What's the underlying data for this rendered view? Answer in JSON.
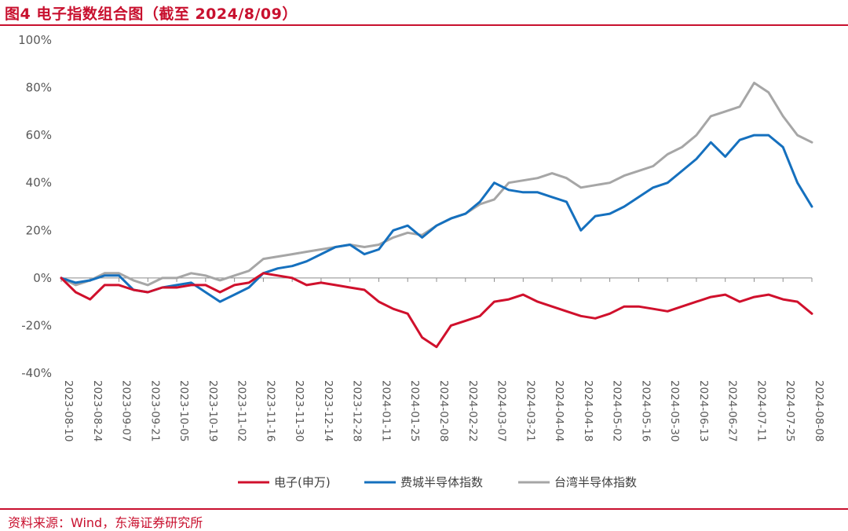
{
  "title": "图4  电子指数组合图（截至 2024/8/09）",
  "source": "资料来源：Wind，东海证券研究所",
  "colors": {
    "accent": "#c8102e"
  },
  "chart_data": {
    "type": "line",
    "title": "",
    "xlabel": "",
    "ylabel": "",
    "ylim": [
      -40,
      100
    ],
    "y_ticks": [
      -40,
      -20,
      0,
      20,
      40,
      60,
      80,
      100
    ],
    "y_tick_format": "percent",
    "grid": false,
    "legend_position": "bottom",
    "x_tick_labels": [
      "2023-08-10",
      "2023-08-24",
      "2023-09-07",
      "2023-09-21",
      "2023-10-05",
      "2023-10-19",
      "2023-11-02",
      "2023-11-16",
      "2023-11-30",
      "2023-12-14",
      "2023-12-28",
      "2024-01-11",
      "2024-01-25",
      "2024-02-08",
      "2024-02-22",
      "2024-03-07",
      "2024-03-21",
      "2024-04-04",
      "2024-04-18",
      "2024-05-02",
      "2024-05-16",
      "2024-05-30",
      "2024-06-13",
      "2024-06-27",
      "2024-07-11",
      "2024-07-25",
      "2024-08-08"
    ],
    "x": [
      "2023-08-10",
      "2023-08-17",
      "2023-08-24",
      "2023-08-31",
      "2023-09-07",
      "2023-09-14",
      "2023-09-21",
      "2023-09-28",
      "2023-10-05",
      "2023-10-12",
      "2023-10-19",
      "2023-10-26",
      "2023-11-02",
      "2023-11-09",
      "2023-11-16",
      "2023-11-23",
      "2023-11-30",
      "2023-12-07",
      "2023-12-14",
      "2023-12-21",
      "2023-12-28",
      "2024-01-04",
      "2024-01-11",
      "2024-01-18",
      "2024-01-25",
      "2024-02-01",
      "2024-02-08",
      "2024-02-15",
      "2024-02-22",
      "2024-02-29",
      "2024-03-07",
      "2024-03-14",
      "2024-03-21",
      "2024-03-28",
      "2024-04-04",
      "2024-04-11",
      "2024-04-18",
      "2024-04-25",
      "2024-05-02",
      "2024-05-09",
      "2024-05-16",
      "2024-05-23",
      "2024-05-30",
      "2024-06-06",
      "2024-06-13",
      "2024-06-20",
      "2024-06-27",
      "2024-07-04",
      "2024-07-11",
      "2024-07-18",
      "2024-07-25",
      "2024-08-01",
      "2024-08-08"
    ],
    "series": [
      {
        "name": "电子(申万)",
        "color": "#d0102c",
        "values": [
          0,
          -6,
          -9,
          -3,
          -3,
          -5,
          -6,
          -4,
          -4,
          -3,
          -3,
          -6,
          -3,
          -2,
          2,
          1,
          0,
          -3,
          -2,
          -3,
          -4,
          -5,
          -10,
          -13,
          -15,
          -25,
          -29,
          -20,
          -18,
          -16,
          -10,
          -9,
          -7,
          -10,
          -12,
          -14,
          -16,
          -17,
          -15,
          -12,
          -12,
          -13,
          -14,
          -12,
          -10,
          -8,
          -7,
          -10,
          -8,
          -7,
          -9,
          -10,
          -15
        ]
      },
      {
        "name": "费城半导体指数",
        "color": "#1570be",
        "values": [
          0,
          -2,
          -1,
          1,
          1,
          -5,
          -6,
          -4,
          -3,
          -2,
          -6,
          -10,
          -7,
          -4,
          2,
          4,
          5,
          7,
          10,
          13,
          14,
          10,
          12,
          20,
          22,
          17,
          22,
          25,
          27,
          32,
          40,
          37,
          36,
          36,
          34,
          32,
          20,
          26,
          27,
          30,
          34,
          38,
          40,
          45,
          50,
          57,
          51,
          58,
          60,
          60,
          55,
          40,
          30
        ]
      },
      {
        "name": "台湾半导体指数",
        "color": "#a6a6a6",
        "values": [
          0,
          -3,
          -1,
          2,
          2,
          -1,
          -3,
          0,
          0,
          2,
          1,
          -1,
          1,
          3,
          8,
          9,
          10,
          11,
          12,
          13,
          14,
          13,
          14,
          17,
          19,
          18,
          22,
          25,
          27,
          31,
          33,
          40,
          41,
          42,
          44,
          42,
          38,
          39,
          40,
          43,
          45,
          47,
          52,
          55,
          60,
          68,
          70,
          72,
          82,
          78,
          68,
          60,
          57
        ]
      }
    ]
  }
}
